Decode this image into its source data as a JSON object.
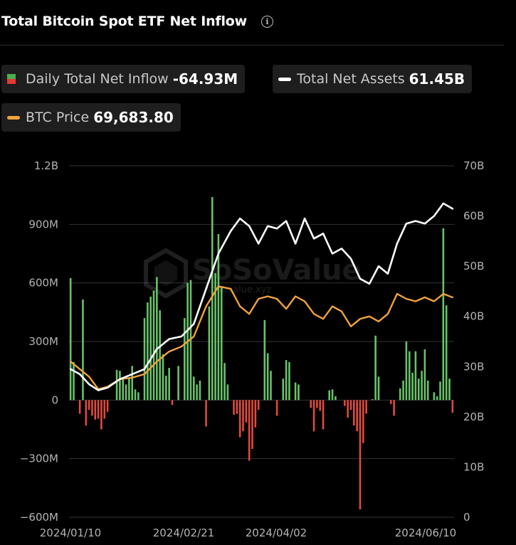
{
  "header": {
    "title": "Total Bitcoin Spot ETF Net Inflow",
    "info_icon": "info-icon"
  },
  "legend": {
    "inflow": {
      "label": "Daily Total Net Inflow",
      "value": "-64.93M",
      "color_up": "#4caf50",
      "color_down": "#e53935"
    },
    "assets": {
      "label": "Total Net Assets",
      "value": "61.45B",
      "color": "#ffffff"
    },
    "price": {
      "label": "BTC Price",
      "value": "69,683.80",
      "color": "#f0a33c"
    }
  },
  "watermark": {
    "brand": "SoSoValue",
    "url": "sosovalue.xyz"
  },
  "colors": {
    "inflow_positive": "#69c26a",
    "inflow_negative": "#e04a3f",
    "net_assets_line": "#ffffff",
    "btc_price_line": "#f0a33c",
    "grid": "#333333",
    "axis_text": "#b3b3b3",
    "background": "#000000"
  },
  "chart_data": {
    "type": "bar",
    "x_tick_labels": [
      "2024/01/10",
      "2024/02/21",
      "2024/04/02",
      "2024/06/10"
    ],
    "y_left": {
      "unit": "USD",
      "ticks": [
        "1.2B",
        "900M",
        "600M",
        "300M",
        "0",
        "−300M",
        "−600M"
      ],
      "range_millions": [
        -600,
        1200
      ]
    },
    "y_right": {
      "unit": "USD",
      "ticks": [
        "70B",
        "60B",
        "50B",
        "40B",
        "30B",
        "20B",
        "10B",
        "0"
      ],
      "range_billions": [
        0,
        70
      ]
    },
    "grid": true,
    "series": [
      {
        "name": "Daily Total Net Inflow",
        "type": "bar",
        "unit": "M",
        "values": [
          625,
          195,
          0,
          -70,
          515,
          -130,
          -50,
          -80,
          -100,
          -95,
          -150,
          -95,
          -60,
          0,
          0,
          155,
          150,
          105,
          80,
          110,
          175,
          55,
          40,
          0,
          420,
          500,
          530,
          560,
          630,
          460,
          235,
          125,
          165,
          -25,
          0,
          175,
          0,
          420,
          600,
          615,
          120,
          80,
          100,
          0,
          -135,
          480,
          1040,
          650,
          850,
          580,
          190,
          80,
          0,
          -75,
          -70,
          -190,
          -160,
          -115,
          -310,
          -250,
          -140,
          -50,
          0,
          410,
          240,
          150,
          0,
          -80,
          0,
          110,
          205,
          195,
          0,
          90,
          80,
          0,
          0,
          0,
          -40,
          -160,
          -40,
          -55,
          -150,
          0,
          50,
          55,
          20,
          0,
          0,
          -30,
          -90,
          -50,
          -130,
          -160,
          -560,
          -220,
          -70,
          0,
          5,
          330,
          120,
          0,
          0,
          0,
          -20,
          -80,
          0,
          60,
          100,
          300,
          250,
          140,
          250,
          110,
          150,
          260,
          100,
          0,
          40,
          20,
          95,
          880,
          485,
          110,
          -65
        ]
      },
      {
        "name": "Total Net Assets",
        "type": "line",
        "unit": "B",
        "points": [
          [
            0,
            29.5
          ],
          [
            3,
            28.5
          ],
          [
            6,
            26.5
          ],
          [
            9,
            25.3
          ],
          [
            12,
            25.8
          ],
          [
            16,
            27.5
          ],
          [
            20,
            28.5
          ],
          [
            24,
            29.5
          ],
          [
            28,
            33.5
          ],
          [
            32,
            35.5
          ],
          [
            36,
            36.0
          ],
          [
            40,
            38.5
          ],
          [
            44,
            45.5
          ],
          [
            48,
            52.5
          ],
          [
            52,
            57.0
          ],
          [
            55,
            59.5
          ],
          [
            58,
            58.0
          ],
          [
            61,
            54.5
          ],
          [
            64,
            58.0
          ],
          [
            67,
            57.5
          ],
          [
            70,
            59.0
          ],
          [
            73,
            54.5
          ],
          [
            76,
            59.5
          ],
          [
            79,
            55.5
          ],
          [
            82,
            56.5
          ],
          [
            85,
            52.5
          ],
          [
            88,
            53.5
          ],
          [
            91,
            51.5
          ],
          [
            94,
            47.5
          ],
          [
            97,
            46.5
          ],
          [
            100,
            50.0
          ],
          [
            103,
            48.5
          ],
          [
            106,
            54.5
          ],
          [
            109,
            58.5
          ],
          [
            112,
            59.0
          ],
          [
            115,
            58.5
          ],
          [
            118,
            60.0
          ],
          [
            121,
            62.5
          ],
          [
            124,
            61.45
          ]
        ]
      },
      {
        "name": "BTC Price",
        "type": "line",
        "points": [
          [
            0,
            31.0
          ],
          [
            3,
            29.5
          ],
          [
            6,
            28.0
          ],
          [
            9,
            25.5
          ],
          [
            12,
            26.0
          ],
          [
            16,
            27.5
          ],
          [
            20,
            27.8
          ],
          [
            24,
            28.5
          ],
          [
            28,
            31.0
          ],
          [
            32,
            33.0
          ],
          [
            36,
            34.0
          ],
          [
            40,
            36.0
          ],
          [
            44,
            42.0
          ],
          [
            48,
            46.0
          ],
          [
            52,
            45.5
          ],
          [
            55,
            42.0
          ],
          [
            58,
            40.5
          ],
          [
            61,
            43.5
          ],
          [
            64,
            44.0
          ],
          [
            67,
            43.5
          ],
          [
            70,
            41.5
          ],
          [
            73,
            44.0
          ],
          [
            76,
            43.0
          ],
          [
            79,
            40.5
          ],
          [
            82,
            39.5
          ],
          [
            85,
            42.0
          ],
          [
            88,
            41.0
          ],
          [
            91,
            38.0
          ],
          [
            94,
            39.5
          ],
          [
            97,
            40.0
          ],
          [
            100,
            39.0
          ],
          [
            103,
            40.5
          ],
          [
            106,
            44.5
          ],
          [
            109,
            43.5
          ],
          [
            112,
            43.0
          ],
          [
            115,
            43.8
          ],
          [
            118,
            43.0
          ],
          [
            121,
            44.5
          ],
          [
            124,
            43.8
          ]
        ]
      }
    ]
  }
}
